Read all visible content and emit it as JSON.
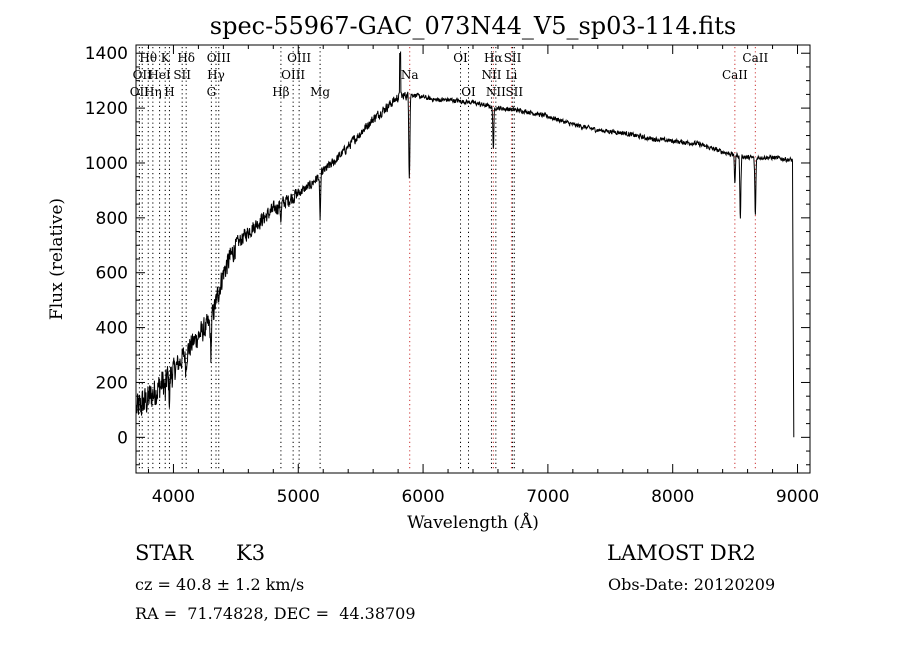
{
  "chart_data": {
    "type": "line",
    "title": "spec-55967-GAC_073N44_V5_sp03-114.fits",
    "xlabel": "Wavelength (Å)",
    "ylabel": "Flux (relative)",
    "xlim": [
      3700,
      9100
    ],
    "ylim": [
      -130,
      1430
    ],
    "xticks": [
      4000,
      5000,
      6000,
      7000,
      8000,
      9000
    ],
    "yticks": [
      0,
      200,
      400,
      600,
      800,
      1000,
      1200,
      1400
    ],
    "grid": false,
    "series": [
      {
        "color": "#000000",
        "continuum": [
          [
            3700,
            100
          ],
          [
            3800,
            140
          ],
          [
            3900,
            190
          ],
          [
            4000,
            240
          ],
          [
            4100,
            310
          ],
          [
            4200,
            370
          ],
          [
            4300,
            420
          ],
          [
            4400,
            600
          ],
          [
            4500,
            700
          ],
          [
            4600,
            750
          ],
          [
            4700,
            790
          ],
          [
            4800,
            830
          ],
          [
            4900,
            860
          ],
          [
            5000,
            890
          ],
          [
            5100,
            920
          ],
          [
            5200,
            970
          ],
          [
            5300,
            1010
          ],
          [
            5400,
            1060
          ],
          [
            5500,
            1110
          ],
          [
            5600,
            1160
          ],
          [
            5700,
            1200
          ],
          [
            5800,
            1240
          ],
          [
            5900,
            1250
          ],
          [
            6000,
            1240
          ],
          [
            6100,
            1230
          ],
          [
            6200,
            1230
          ],
          [
            6300,
            1225
          ],
          [
            6400,
            1220
          ],
          [
            6500,
            1210
          ],
          [
            6600,
            1200
          ],
          [
            6700,
            1195
          ],
          [
            6800,
            1190
          ],
          [
            6900,
            1180
          ],
          [
            7000,
            1170
          ],
          [
            7200,
            1140
          ],
          [
            7400,
            1120
          ],
          [
            7600,
            1110
          ],
          [
            7800,
            1090
          ],
          [
            8000,
            1080
          ],
          [
            8200,
            1070
          ],
          [
            8400,
            1040
          ],
          [
            8600,
            1020
          ],
          [
            8800,
            1020
          ],
          [
            8960,
            1010
          ],
          [
            8970,
            0
          ]
        ],
        "absorption_dips": [
          [
            3934,
            60
          ],
          [
            3968,
            80
          ],
          [
            4100,
            60
          ],
          [
            4300,
            120
          ],
          [
            4861,
            50
          ],
          [
            5175,
            160
          ],
          [
            5890,
            290
          ],
          [
            6563,
            150
          ],
          [
            8498,
            100
          ],
          [
            8542,
            230
          ],
          [
            8662,
            210
          ]
        ]
      }
    ]
  },
  "lines": [
    {
      "wl": 3727,
      "color": "#000000",
      "row": 2,
      "text": "OII"
    },
    {
      "wl": 3750,
      "color": "#000000",
      "row": 1,
      "text": "OII"
    },
    {
      "wl": 3798,
      "color": "#000000",
      "row": 0,
      "text": "Hθ"
    },
    {
      "wl": 3835,
      "color": "#000000",
      "row": 2,
      "text": "Hη"
    },
    {
      "wl": 3889,
      "color": "#000000",
      "row": 1,
      "text": "HeI"
    },
    {
      "wl": 3934,
      "color": "#000000",
      "row": 0,
      "text": "K"
    },
    {
      "wl": 3968,
      "color": "#000000",
      "row": 2,
      "text": "H"
    },
    {
      "wl": 4070,
      "color": "#000000",
      "row": 1,
      "text": "SII"
    },
    {
      "wl": 4102,
      "color": "#000000",
      "row": 0,
      "text": "Hδ"
    },
    {
      "wl": 4304,
      "color": "#000000",
      "row": 2,
      "text": "G"
    },
    {
      "wl": 4341,
      "color": "#000000",
      "row": 1,
      "text": "Hγ"
    },
    {
      "wl": 4363,
      "color": "#000000",
      "row": 0,
      "text": "OIII"
    },
    {
      "wl": 4861,
      "color": "#000000",
      "row": 2,
      "text": "Hβ"
    },
    {
      "wl": 4959,
      "color": "#000000",
      "row": 1,
      "text": "OIII"
    },
    {
      "wl": 5007,
      "color": "#000000",
      "row": 0,
      "text": "OIII"
    },
    {
      "wl": 5175,
      "color": "#000000",
      "row": 2,
      "text": "Mg"
    },
    {
      "wl": 5893,
      "color": "#cc3333",
      "row": 1,
      "text": "Na"
    },
    {
      "wl": 6300,
      "color": "#000000",
      "row": 0,
      "text": "OI"
    },
    {
      "wl": 6364,
      "color": "#000000",
      "row": 2,
      "text": "OI"
    },
    {
      "wl": 6548,
      "color": "#000000",
      "row": 1,
      "text": "NII"
    },
    {
      "wl": 6563,
      "color": "#cc3333",
      "row": 0,
      "text": "Hα"
    },
    {
      "wl": 6583,
      "color": "#000000",
      "row": 2,
      "text": "NII"
    },
    {
      "wl": 6708,
      "color": "#cc3333",
      "row": 1,
      "text": "Li"
    },
    {
      "wl": 6717,
      "color": "#000000",
      "row": 0,
      "text": "SII"
    },
    {
      "wl": 6731,
      "color": "#000000",
      "row": 2,
      "text": "SII"
    },
    {
      "wl": 8498,
      "color": "#cc3333",
      "row": 1,
      "text": "CaII"
    },
    {
      "wl": 8662,
      "color": "#cc3333",
      "row": 0,
      "text": "CaII"
    }
  ],
  "info": {
    "object_class": "STAR",
    "subclass": "K3",
    "survey": "LAMOST DR2",
    "cz": "cz = 40.8 ± 1.2 km/s",
    "obs_date": "Obs-Date: 20120209",
    "coords": "RA =  71.74828, DEC =  44.38709"
  }
}
